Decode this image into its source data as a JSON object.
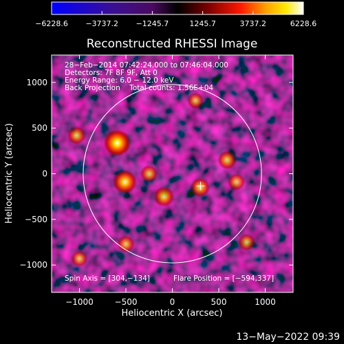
{
  "chart_data": {
    "type": "heatmap",
    "title": "Reconstructed RHESSI Image",
    "xlabel": "Heliocentric X (arcsec)",
    "ylabel": "Heliocentric Y (arcsec)",
    "xlim": [
      -1300,
      1300
    ],
    "ylim": [
      -1300,
      1300
    ],
    "x_ticks": [
      -1000,
      -500,
      0,
      500,
      1000
    ],
    "y_ticks": [
      -1000,
      -500,
      0,
      500,
      1000
    ],
    "x_tick_labels": [
      "−1000",
      "−500",
      "0",
      "500",
      "1000"
    ],
    "y_tick_labels": [
      "−1000",
      "−500",
      "0",
      "500",
      "1000"
    ],
    "colorbar": {
      "min": -6228.6,
      "max": 6228.6,
      "tick_values": [
        -6228.6,
        -3737.2,
        -1245.7,
        1245.7,
        3737.2,
        6228.6
      ],
      "tick_labels": [
        "−6228.6",
        "−3737.2",
        "−1245.7",
        "1245.7",
        "3737.2",
        "6228.6"
      ]
    },
    "annotations": {
      "lines": [
        "28−Feb−2014 07:42:24.000 to 07:46:04.000",
        "Detectors: 7F 8F 9F, Att 0",
        "Energy Range: 6.0 − 12.0 keV",
        "Back Projection    Total counts: 1.56E+04"
      ],
      "spin_axis": "Spin Axis = [304,−134]",
      "flare_position": "Flare Position = [−594,337]"
    },
    "solar_limb": {
      "center": [
        0,
        0
      ],
      "radius": 960
    },
    "marker": {
      "x": 304,
      "y": -134
    },
    "sources": [
      {
        "x": -594,
        "y": 337,
        "intensity": 6228.6
      },
      {
        "x": -510,
        "y": -90,
        "intensity": 5000
      },
      {
        "x": -90,
        "y": -250,
        "intensity": 3600
      },
      {
        "x": 300,
        "y": -150,
        "intensity": 3300
      },
      {
        "x": 590,
        "y": 150,
        "intensity": 3000
      },
      {
        "x": -1030,
        "y": 420,
        "intensity": 2800
      },
      {
        "x": -250,
        "y": 0,
        "intensity": 2500
      },
      {
        "x": 690,
        "y": -90,
        "intensity": 2400
      },
      {
        "x": -500,
        "y": -770,
        "intensity": 2500
      },
      {
        "x": 800,
        "y": -750,
        "intensity": 2400
      },
      {
        "x": -1000,
        "y": -930,
        "intensity": 2200
      },
      {
        "x": 250,
        "y": 800,
        "intensity": 2100
      }
    ]
  },
  "footer": {
    "timestamp": "13−May−2022 09:39"
  }
}
